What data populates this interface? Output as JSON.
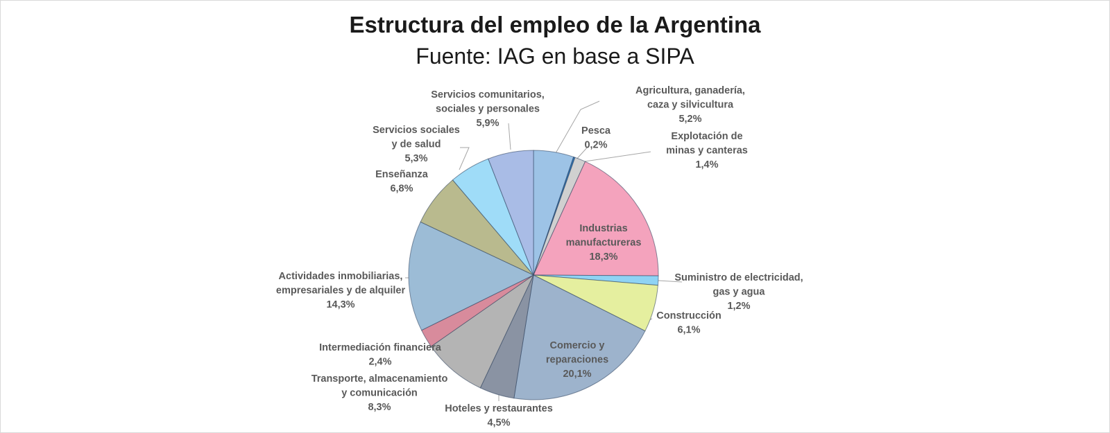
{
  "chart_data": {
    "type": "pie",
    "title": "Estructura del empleo de la Argentina",
    "subtitle": "Fuente:  IAG en base a SIPA",
    "slices": [
      {
        "name": "Agricultura, ganadería, caza y silvicultura",
        "label_lines": [
          "Agricultura, ganadería,",
          "caza y silvicultura"
        ],
        "value": 5.2,
        "value_label": "5,2%",
        "color": "#9dc3e6"
      },
      {
        "name": "Pesca",
        "label_lines": [
          "Pesca"
        ],
        "value": 0.2,
        "value_label": "0,2%",
        "color": "#2e75b6"
      },
      {
        "name": "Explotación de minas y canteras",
        "label_lines": [
          "Explotación de",
          "minas y canteras"
        ],
        "value": 1.4,
        "value_label": "1,4%",
        "color": "#d0d0d0"
      },
      {
        "name": "Industrias manufactureras",
        "label_lines": [
          "Industrias",
          "manufactureras"
        ],
        "value": 18.3,
        "value_label": "18,3%",
        "color": "#f4a3bd"
      },
      {
        "name": "Suministro de electricidad, gas y agua",
        "label_lines": [
          "Suministro de electricidad,",
          "gas y agua"
        ],
        "value": 1.2,
        "value_label": "1,2%",
        "color": "#8fd3f4"
      },
      {
        "name": "Construcción",
        "label_lines": [
          "Construcción"
        ],
        "value": 6.1,
        "value_label": "6,1%",
        "color": "#e5ef9f"
      },
      {
        "name": "Comercio y reparaciones",
        "label_lines": [
          "Comercio y",
          "reparaciones"
        ],
        "value": 20.1,
        "value_label": "20,1%",
        "color": "#9db3cc"
      },
      {
        "name": "Hoteles y restaurantes",
        "label_lines": [
          "Hoteles y restaurantes"
        ],
        "value": 4.5,
        "value_label": "4,5%",
        "color": "#8a93a3"
      },
      {
        "name": "Transporte, almacenamiento y comunicación",
        "label_lines": [
          "Transporte, almacenamiento",
          "y comunicación"
        ],
        "value": 8.3,
        "value_label": "8,3%",
        "color": "#b4b4b4"
      },
      {
        "name": "Intermediación financiera",
        "label_lines": [
          "Intermediación financiera"
        ],
        "value": 2.4,
        "value_label": "2,4%",
        "color": "#d88b9c"
      },
      {
        "name": "Actividades inmobiliarias, empresariales y de alquiler",
        "label_lines": [
          "Actividades inmobiliarias,",
          "empresariales y de alquiler"
        ],
        "value": 14.3,
        "value_label": "14,3%",
        "color": "#9cbcd6"
      },
      {
        "name": "Enseñanza",
        "label_lines": [
          "Enseñanza"
        ],
        "value": 6.8,
        "value_label": "6,8%",
        "color": "#b9ba8e"
      },
      {
        "name": "Servicios sociales y de salud",
        "label_lines": [
          "Servicios sociales",
          "y de salud"
        ],
        "value": 5.3,
        "value_label": "5,3%",
        "color": "#9fdcf8"
      },
      {
        "name": "Servicios comunitarios, sociales y personales",
        "label_lines": [
          "Servicios comunitarios,",
          "sociales y personales"
        ],
        "value": 5.9,
        "value_label": "5,9%",
        "color": "#a9bce6"
      }
    ],
    "legend": "none"
  }
}
